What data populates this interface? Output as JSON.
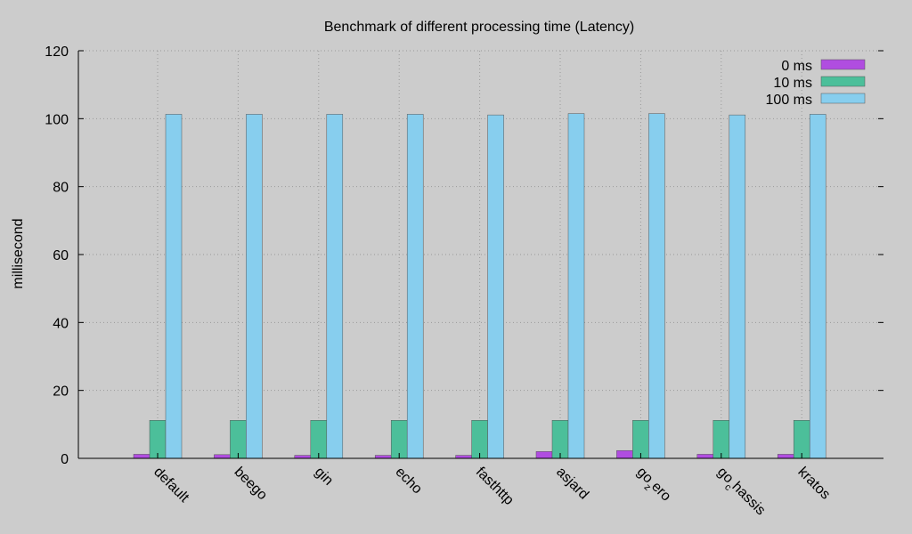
{
  "chart_data": {
    "type": "bar",
    "title": "Benchmark of different processing time (Latency)",
    "xlabel": "",
    "ylabel": "millisecond",
    "ylim": [
      0,
      120
    ],
    "yticks": [
      0,
      20,
      40,
      60,
      80,
      100,
      120
    ],
    "grid": true,
    "legend_position": "top-right",
    "categories": [
      "default",
      "beego",
      "gin",
      "echo",
      "fasthttp",
      "asjard",
      "go_zero",
      "go_chassis",
      "kratos"
    ],
    "category_labels": [
      {
        "base": "default"
      },
      {
        "base": "beego"
      },
      {
        "base": "gin"
      },
      {
        "base": "echo"
      },
      {
        "base": "fasthttp"
      },
      {
        "base": "asjard"
      },
      {
        "base": "go",
        "sub": "z",
        "rest": "ero"
      },
      {
        "base": "go",
        "sub": "c",
        "rest": "hassis"
      },
      {
        "base": "kratos"
      }
    ],
    "series": [
      {
        "name": "0 ms",
        "color": "#b04de0",
        "values": [
          1.2,
          1.1,
          0.9,
          0.9,
          0.9,
          2.0,
          2.3,
          1.2,
          1.2
        ]
      },
      {
        "name": "10 ms",
        "color": "#4cbf9a",
        "values": [
          11.2,
          11.2,
          11.2,
          11.2,
          11.2,
          11.2,
          11.2,
          11.2,
          11.2
        ]
      },
      {
        "name": "100 ms",
        "color": "#87ceee",
        "values": [
          101.3,
          101.3,
          101.3,
          101.3,
          101.1,
          101.5,
          101.5,
          101.1,
          101.3
        ]
      }
    ]
  }
}
